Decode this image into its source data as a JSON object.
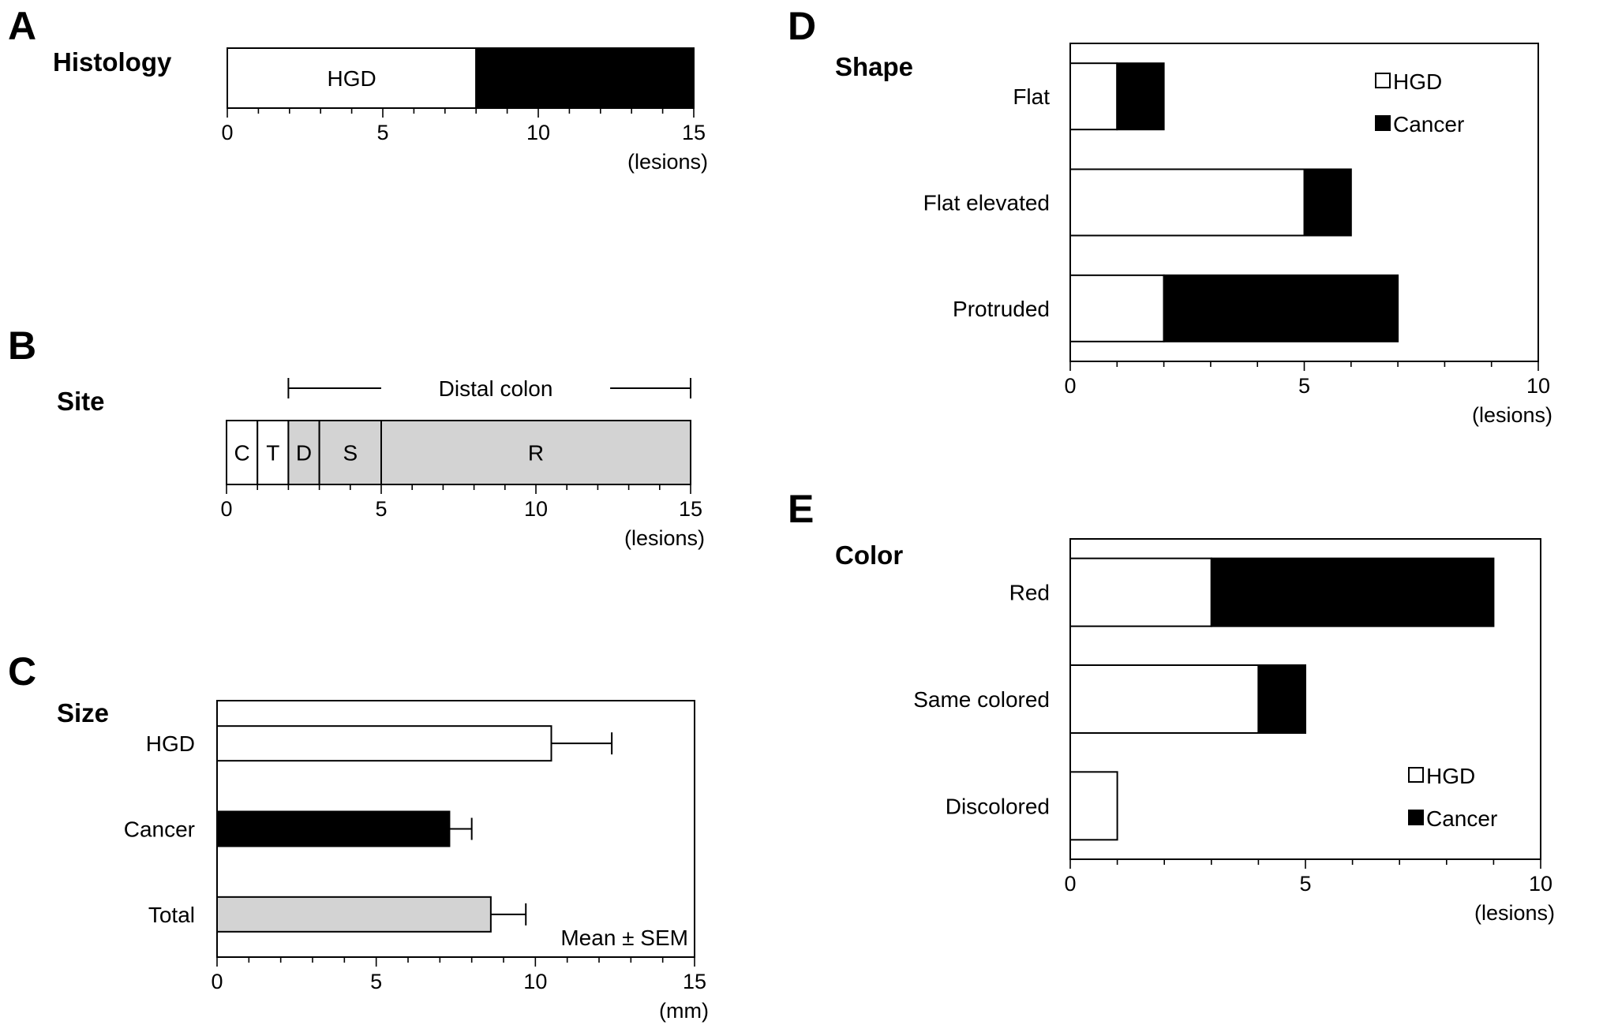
{
  "panels": {
    "A": {
      "letter": "A",
      "title": "Histology"
    },
    "B": {
      "letter": "B",
      "title": "Site"
    },
    "C": {
      "letter": "C",
      "title": "Size"
    },
    "D": {
      "letter": "D",
      "title": "Shape"
    },
    "E": {
      "letter": "E",
      "title": "Color"
    }
  },
  "chart_data": [
    {
      "panel": "A",
      "type": "bar",
      "orientation": "horizontal-stacked",
      "title": "Histology",
      "xlabel": "(lesions)",
      "xlim": [
        0,
        15
      ],
      "xticks": [
        0,
        5,
        10,
        15
      ],
      "segments": [
        {
          "label": "HGD",
          "value": 8,
          "color": "#ffffff"
        },
        {
          "label": "Cancer",
          "value": 7,
          "color": "#000000"
        }
      ]
    },
    {
      "panel": "B",
      "type": "bar",
      "orientation": "horizontal-stacked",
      "title": "Site",
      "xlabel": "(lesions)",
      "xlim": [
        0,
        15
      ],
      "xticks": [
        0,
        5,
        10,
        15
      ],
      "bracket": {
        "label": "Distal colon",
        "from": 2,
        "to": 15
      },
      "segments": [
        {
          "label": "C",
          "value": 1,
          "color": "#ffffff"
        },
        {
          "label": "T",
          "value": 1,
          "color": "#ffffff"
        },
        {
          "label": "D",
          "value": 1,
          "color": "#d3d3d3"
        },
        {
          "label": "S",
          "value": 2,
          "color": "#d3d3d3"
        },
        {
          "label": "R",
          "value": 10,
          "color": "#d3d3d3"
        }
      ]
    },
    {
      "panel": "C",
      "type": "bar",
      "orientation": "horizontal",
      "title": "Size",
      "xlabel": "(mm)",
      "xlim": [
        0,
        15
      ],
      "xticks": [
        0,
        5,
        10,
        15
      ],
      "annotation": "Mean ± SEM",
      "categories": [
        "HGD",
        "Cancer",
        "Total"
      ],
      "values": [
        10.5,
        7.3,
        8.6
      ],
      "errors": [
        1.9,
        0.7,
        1.1
      ],
      "colors": [
        "#ffffff",
        "#000000",
        "#d3d3d3"
      ]
    },
    {
      "panel": "D",
      "type": "bar",
      "orientation": "horizontal-stacked",
      "title": "Shape",
      "xlabel": "(lesions)",
      "xlim": [
        0,
        10
      ],
      "xticks": [
        0,
        5,
        10
      ],
      "legend_position": "top-right",
      "categories": [
        "Flat",
        "Flat elevated",
        "Protruded"
      ],
      "series": [
        {
          "name": "HGD",
          "values": [
            1,
            5,
            2
          ],
          "color": "#ffffff"
        },
        {
          "name": "Cancer",
          "values": [
            1,
            1,
            5
          ],
          "color": "#000000"
        }
      ]
    },
    {
      "panel": "E",
      "type": "bar",
      "orientation": "horizontal-stacked",
      "title": "Color",
      "xlabel": "(lesions)",
      "xlim": [
        0,
        10
      ],
      "xticks": [
        0,
        5,
        10
      ],
      "legend_position": "bottom-right",
      "categories": [
        "Red",
        "Same colored",
        "Discolored"
      ],
      "series": [
        {
          "name": "HGD",
          "values": [
            3,
            4,
            1
          ],
          "color": "#ffffff"
        },
        {
          "name": "Cancer",
          "values": [
            6,
            1,
            0
          ],
          "color": "#000000"
        }
      ]
    }
  ]
}
